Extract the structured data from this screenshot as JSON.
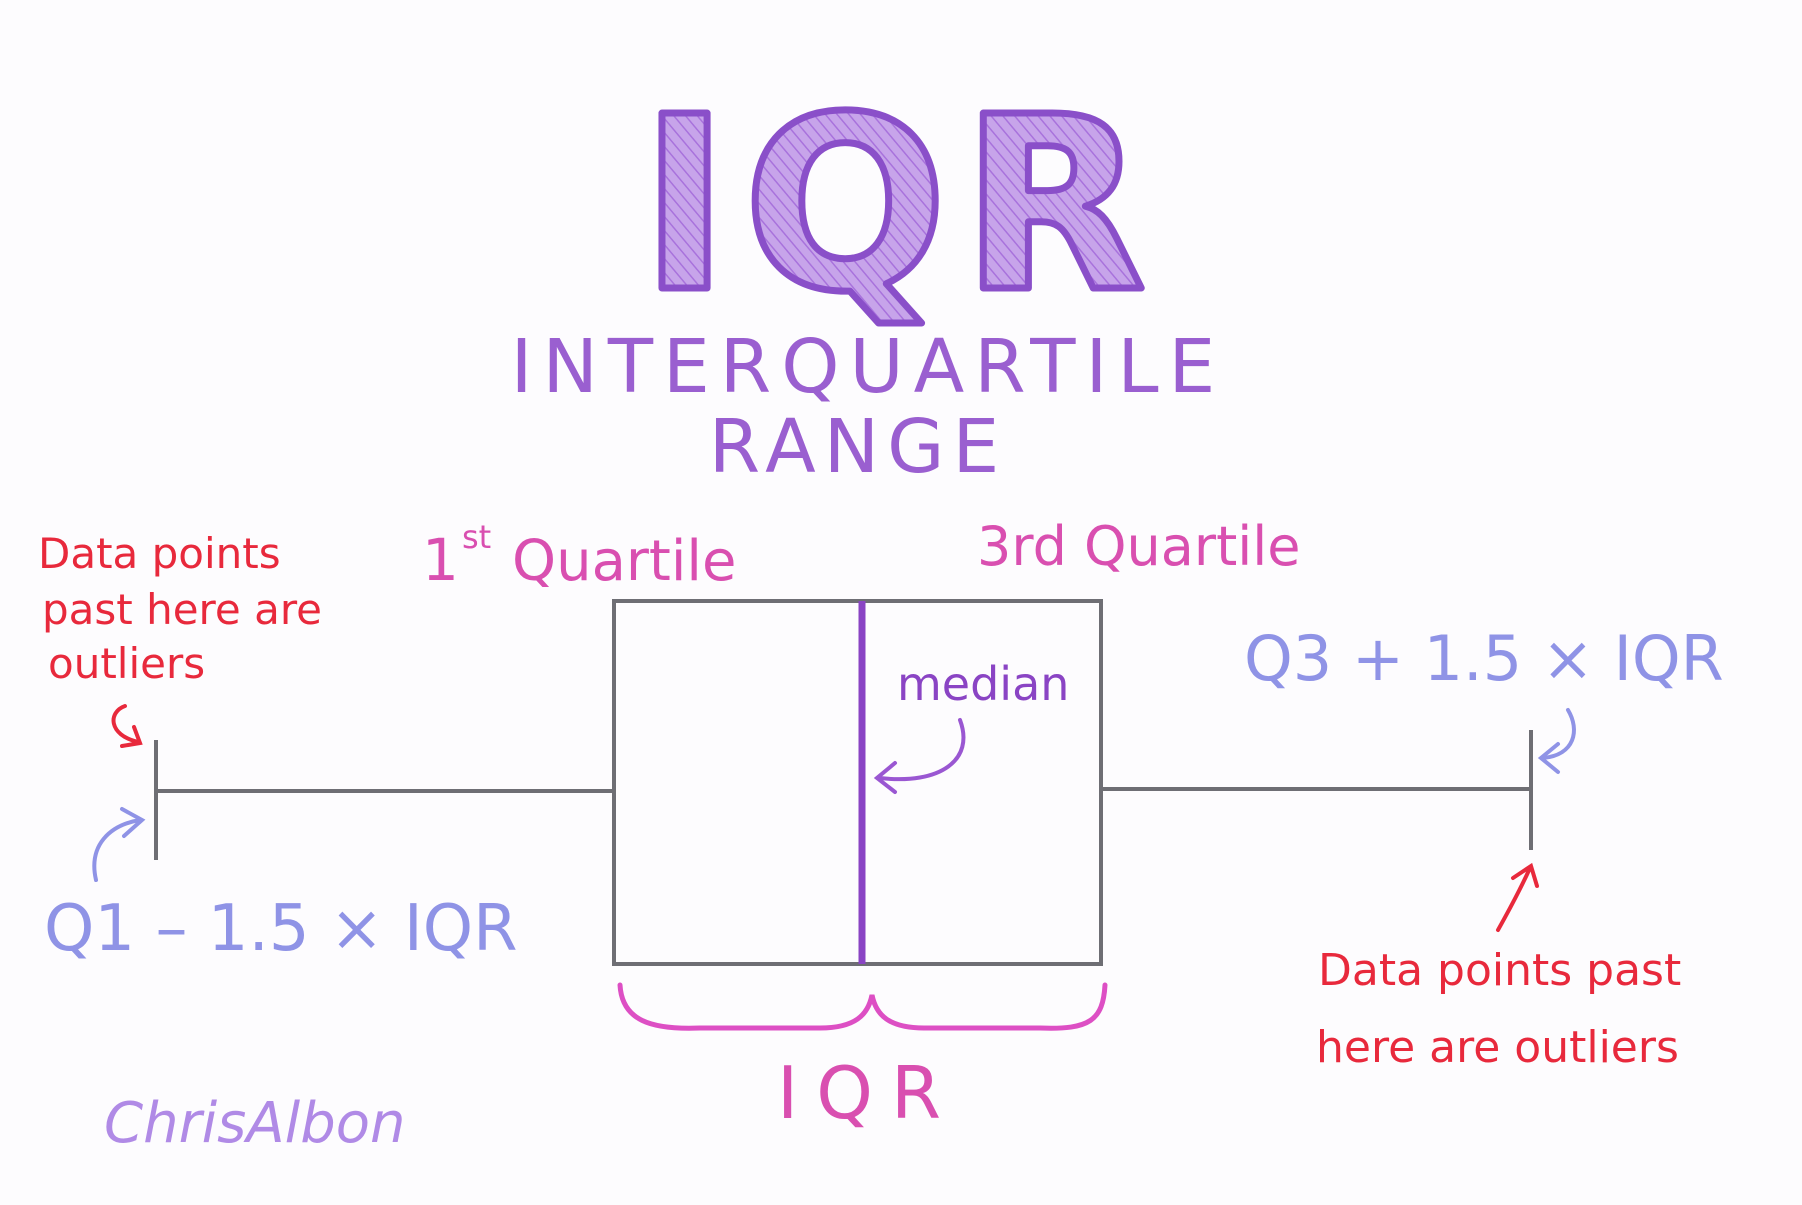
{
  "title": {
    "abbrev": "IQR",
    "line1": "INTERQUARTILE",
    "line2": "RANGE"
  },
  "labels": {
    "q1_main": "1",
    "q1_sup": "st",
    "q1_word": "Quartile",
    "q3": "3rd Quartile",
    "median": "median",
    "lower_fence": "Q1 – 1.5 × IQR",
    "upper_fence": "Q3 + 1.5 × IQR",
    "iqr": "IQR",
    "outliers_left": [
      "Data points",
      "past here are",
      "outliers"
    ],
    "outliers_right": [
      "Data points past",
      "here are outliers"
    ],
    "author": "ChrisAlbon"
  },
  "colors": {
    "title_fill": "#b98de0",
    "title_stroke": "#8a4fc9",
    "subtitle": "#9a5fd0",
    "quartile": "#d94fb0",
    "median": "#8a44c4",
    "fence": "#8f93e6",
    "outlier": "#e8293c",
    "brace": "#dd4fc4",
    "box": "#6e6e74",
    "author": "#b08ae6"
  }
}
